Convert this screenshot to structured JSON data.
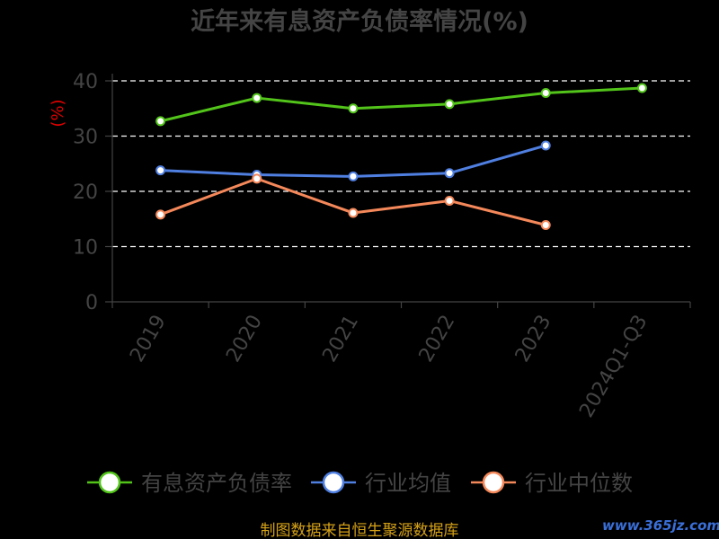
{
  "chart_data": {
    "type": "line",
    "title": "近年来有息资产负债率情况(%)",
    "ylabel": "(%)",
    "ylim": [
      0,
      40
    ],
    "yticks": [
      0,
      10,
      20,
      30,
      40
    ],
    "grid": true,
    "legend_position": "bottom",
    "categories": [
      "2019",
      "2020",
      "2021",
      "2022",
      "2023",
      "2024Q1-Q3"
    ],
    "series": [
      {
        "name": "有息资产负债率",
        "color": "#52c41a",
        "values": [
          32.7,
          36.9,
          35.0,
          35.8,
          37.8,
          38.7
        ]
      },
      {
        "name": "行业均值",
        "color": "#4f7fe0",
        "values": [
          23.8,
          23.0,
          22.7,
          23.3,
          28.3,
          null
        ]
      },
      {
        "name": "行业中位数",
        "color": "#f4885a",
        "values": [
          15.8,
          22.3,
          16.1,
          18.3,
          13.9,
          null
        ]
      }
    ]
  },
  "source": "制图数据来自恒生聚源数据库",
  "watermark": "www.365jz.com"
}
